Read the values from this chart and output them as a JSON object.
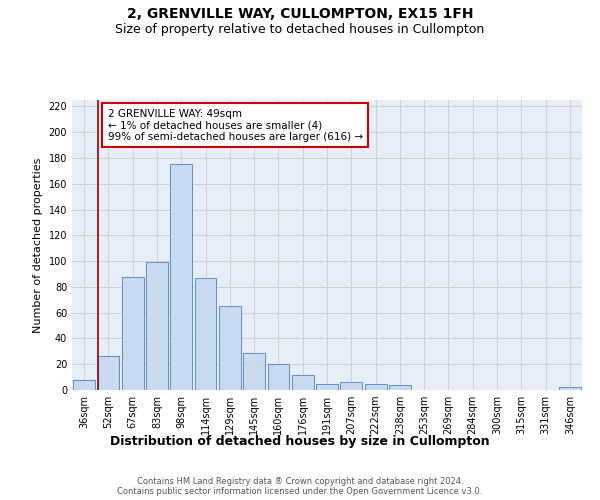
{
  "title1": "2, GRENVILLE WAY, CULLOMPTON, EX15 1FH",
  "title2": "Size of property relative to detached houses in Cullompton",
  "xlabel": "Distribution of detached houses by size in Cullompton",
  "ylabel": "Number of detached properties",
  "bar_labels": [
    "36sqm",
    "52sqm",
    "67sqm",
    "83sqm",
    "98sqm",
    "114sqm",
    "129sqm",
    "145sqm",
    "160sqm",
    "176sqm",
    "191sqm",
    "207sqm",
    "222sqm",
    "238sqm",
    "253sqm",
    "269sqm",
    "284sqm",
    "300sqm",
    "315sqm",
    "331sqm",
    "346sqm"
  ],
  "bar_values": [
    8,
    26,
    88,
    99,
    175,
    87,
    65,
    29,
    20,
    12,
    5,
    6,
    5,
    4,
    0,
    0,
    0,
    0,
    0,
    0,
    2
  ],
  "bar_color": "#c8d9f0",
  "bar_edge_color": "#5b8fc9",
  "vline_x_index": 1,
  "vline_color": "#990000",
  "annotation_lines": [
    "2 GRENVILLE WAY: 49sqm",
    "← 1% of detached houses are smaller (4)",
    "99% of semi-detached houses are larger (616) →"
  ],
  "annotation_box_color": "#ffffff",
  "annotation_box_edge": "#cc0000",
  "ylim": [
    0,
    225
  ],
  "yticks": [
    0,
    20,
    40,
    60,
    80,
    100,
    120,
    140,
    160,
    180,
    200,
    220
  ],
  "grid_color": "#cccccc",
  "bg_color": "#e8eef8",
  "footer1": "Contains HM Land Registry data ® Crown copyright and database right 2024.",
  "footer2": "Contains public sector information licensed under the Open Government Licence v3.0.",
  "title1_fontsize": 10,
  "title2_fontsize": 9,
  "xlabel_fontsize": 9,
  "ylabel_fontsize": 8,
  "tick_fontsize": 7,
  "annotation_fontsize": 7.5,
  "footer_fontsize": 6
}
